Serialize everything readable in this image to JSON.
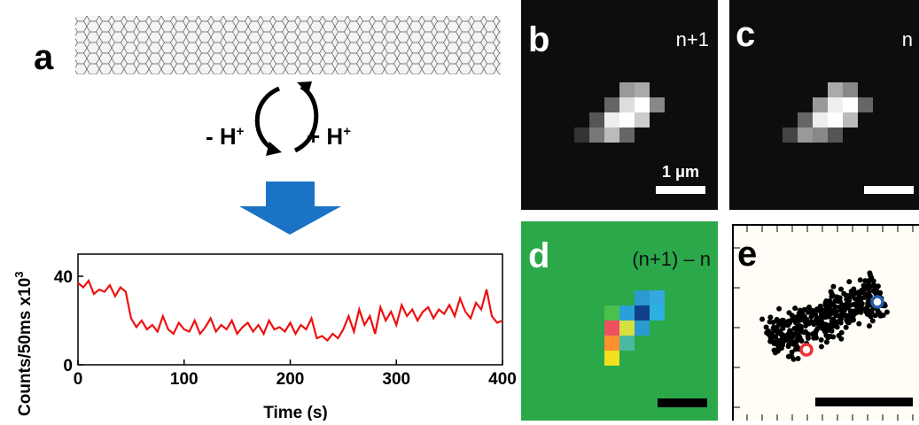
{
  "panels": {
    "a": "a",
    "b": "b",
    "c": "c",
    "d": "d",
    "e": "e"
  },
  "reaction": {
    "left": {
      "text": "- H",
      "sup": "+"
    },
    "right": {
      "text": "+ H",
      "sup": "+"
    }
  },
  "image_labels": {
    "b_frame": "n+1",
    "b_scale": "1 μm",
    "c_frame": "n",
    "d_frame": "(n+1) – n"
  },
  "chart_data": {
    "type": "line",
    "x_label": "Time (s)",
    "y_label": {
      "text": "Counts/50ms  x10",
      "sup": "3"
    },
    "x": [
      0,
      5,
      10,
      15,
      20,
      25,
      30,
      35,
      40,
      45,
      50,
      55,
      60,
      65,
      70,
      75,
      80,
      85,
      90,
      95,
      100,
      105,
      110,
      115,
      120,
      125,
      130,
      135,
      140,
      145,
      150,
      155,
      160,
      165,
      170,
      175,
      180,
      185,
      190,
      195,
      200,
      205,
      210,
      215,
      220,
      225,
      230,
      235,
      240,
      245,
      250,
      255,
      260,
      265,
      270,
      275,
      280,
      285,
      290,
      295,
      300,
      305,
      310,
      315,
      320,
      325,
      330,
      335,
      340,
      345,
      350,
      355,
      360,
      365,
      370,
      375,
      380,
      385,
      390,
      395,
      400
    ],
    "series": [
      {
        "color": "#ee1111",
        "values": [
          37,
          35,
          38,
          32,
          34,
          33,
          36,
          31,
          35,
          33,
          21,
          17,
          20,
          16,
          18,
          15,
          22,
          16,
          14,
          19,
          16,
          15,
          20,
          14,
          17,
          21,
          15,
          18,
          16,
          20,
          14,
          17,
          19,
          15,
          18,
          14,
          20,
          16,
          17,
          15,
          19,
          14,
          18,
          16,
          21,
          12,
          13,
          11,
          14,
          12,
          16,
          22,
          15,
          25,
          18,
          22,
          14,
          26,
          20,
          24,
          18,
          27,
          22,
          25,
          20,
          24,
          26,
          21,
          25,
          23,
          27,
          22,
          30,
          24,
          21,
          28,
          25,
          34,
          22,
          19,
          20
        ]
      }
    ],
    "xlim": [
      0,
      400
    ],
    "ylim": [
      0,
      50
    ],
    "xticks": [
      0,
      100,
      200,
      300,
      400
    ],
    "yticks": [
      0,
      40
    ]
  }
}
